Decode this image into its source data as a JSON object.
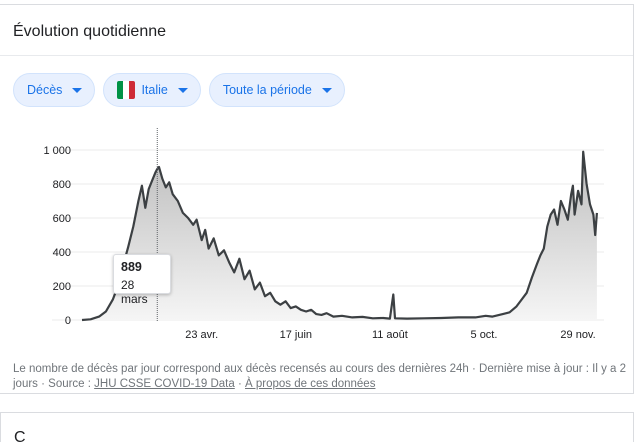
{
  "panel": {
    "title": "Évolution quotidienne"
  },
  "filters": {
    "metric_label": "Décès",
    "country_label": "Italie",
    "period_label": "Toute la période",
    "flag_colors": [
      "#009246",
      "#ffffff",
      "#ce2b37"
    ]
  },
  "tooltip": {
    "value": "889",
    "date": "28 mars"
  },
  "footnote": {
    "text": "Le nombre de décès par jour correspond aux décès recensés au cours des dernières 24h · Dernière mise à jour : Il y a 2 jours  ·  Source : ",
    "source_link": "JHU CSSE COVID-19 Data",
    "separator": "  ·  ",
    "about_link": "À propos de ces données"
  },
  "next_card": {
    "peek_text": "C"
  },
  "chart_data": {
    "type": "area",
    "xlabel": "",
    "ylabel": "",
    "ylim": [
      0,
      1000
    ],
    "y_ticks": [
      0,
      200,
      400,
      600,
      800,
      1000
    ],
    "y_tick_labels": [
      "0",
      "200",
      "400",
      "600",
      "800",
      "1 000"
    ],
    "x_tick_labels": [
      "23 avr.",
      "17 juin",
      "11 août",
      "5 oct.",
      "29 nov."
    ],
    "x_tick_days": [
      70,
      125,
      180,
      235,
      290
    ],
    "x_day_range": [
      0,
      304
    ],
    "highlight_day": 44,
    "grid": true,
    "legend": "none",
    "line_color": "#3c4043",
    "fill_color": "#e0e0e0",
    "points": [
      [
        0,
        0
      ],
      [
        5,
        4
      ],
      [
        10,
        20
      ],
      [
        14,
        50
      ],
      [
        18,
        120
      ],
      [
        21,
        200
      ],
      [
        24,
        320
      ],
      [
        27,
        430
      ],
      [
        30,
        550
      ],
      [
        33,
        700
      ],
      [
        35,
        790
      ],
      [
        37,
        660
      ],
      [
        39,
        770
      ],
      [
        41,
        820
      ],
      [
        43,
        870
      ],
      [
        44,
        889
      ],
      [
        45,
        900
      ],
      [
        47,
        830
      ],
      [
        49,
        780
      ],
      [
        51,
        810
      ],
      [
        53,
        740
      ],
      [
        56,
        700
      ],
      [
        59,
        630
      ],
      [
        62,
        600
      ],
      [
        65,
        560
      ],
      [
        67,
        590
      ],
      [
        70,
        470
      ],
      [
        72,
        530
      ],
      [
        74,
        420
      ],
      [
        77,
        480
      ],
      [
        80,
        380
      ],
      [
        83,
        410
      ],
      [
        86,
        340
      ],
      [
        89,
        280
      ],
      [
        92,
        360
      ],
      [
        95,
        240
      ],
      [
        98,
        290
      ],
      [
        101,
        180
      ],
      [
        104,
        220
      ],
      [
        107,
        140
      ],
      [
        110,
        160
      ],
      [
        113,
        110
      ],
      [
        116,
        90
      ],
      [
        119,
        110
      ],
      [
        122,
        70
      ],
      [
        125,
        80
      ],
      [
        128,
        60
      ],
      [
        131,
        50
      ],
      [
        134,
        60
      ],
      [
        137,
        35
      ],
      [
        140,
        30
      ],
      [
        143,
        40
      ],
      [
        147,
        20
      ],
      [
        152,
        25
      ],
      [
        158,
        15
      ],
      [
        164,
        18
      ],
      [
        170,
        10
      ],
      [
        176,
        12
      ],
      [
        180,
        8
      ],
      [
        182,
        150
      ],
      [
        183,
        10
      ],
      [
        190,
        8
      ],
      [
        200,
        10
      ],
      [
        210,
        12
      ],
      [
        220,
        15
      ],
      [
        230,
        15
      ],
      [
        236,
        25
      ],
      [
        240,
        20
      ],
      [
        246,
        35
      ],
      [
        250,
        45
      ],
      [
        254,
        80
      ],
      [
        257,
        120
      ],
      [
        260,
        160
      ],
      [
        263,
        250
      ],
      [
        266,
        330
      ],
      [
        268,
        380
      ],
      [
        270,
        420
      ],
      [
        272,
        550
      ],
      [
        274,
        620
      ],
      [
        276,
        650
      ],
      [
        278,
        560
      ],
      [
        280,
        700
      ],
      [
        282,
        650
      ],
      [
        284,
        590
      ],
      [
        286,
        740
      ],
      [
        287,
        790
      ],
      [
        288,
        620
      ],
      [
        290,
        760
      ],
      [
        292,
        680
      ],
      [
        293,
        990
      ],
      [
        295,
        800
      ],
      [
        297,
        680
      ],
      [
        299,
        620
      ],
      [
        300,
        500
      ],
      [
        301,
        630
      ]
    ]
  }
}
